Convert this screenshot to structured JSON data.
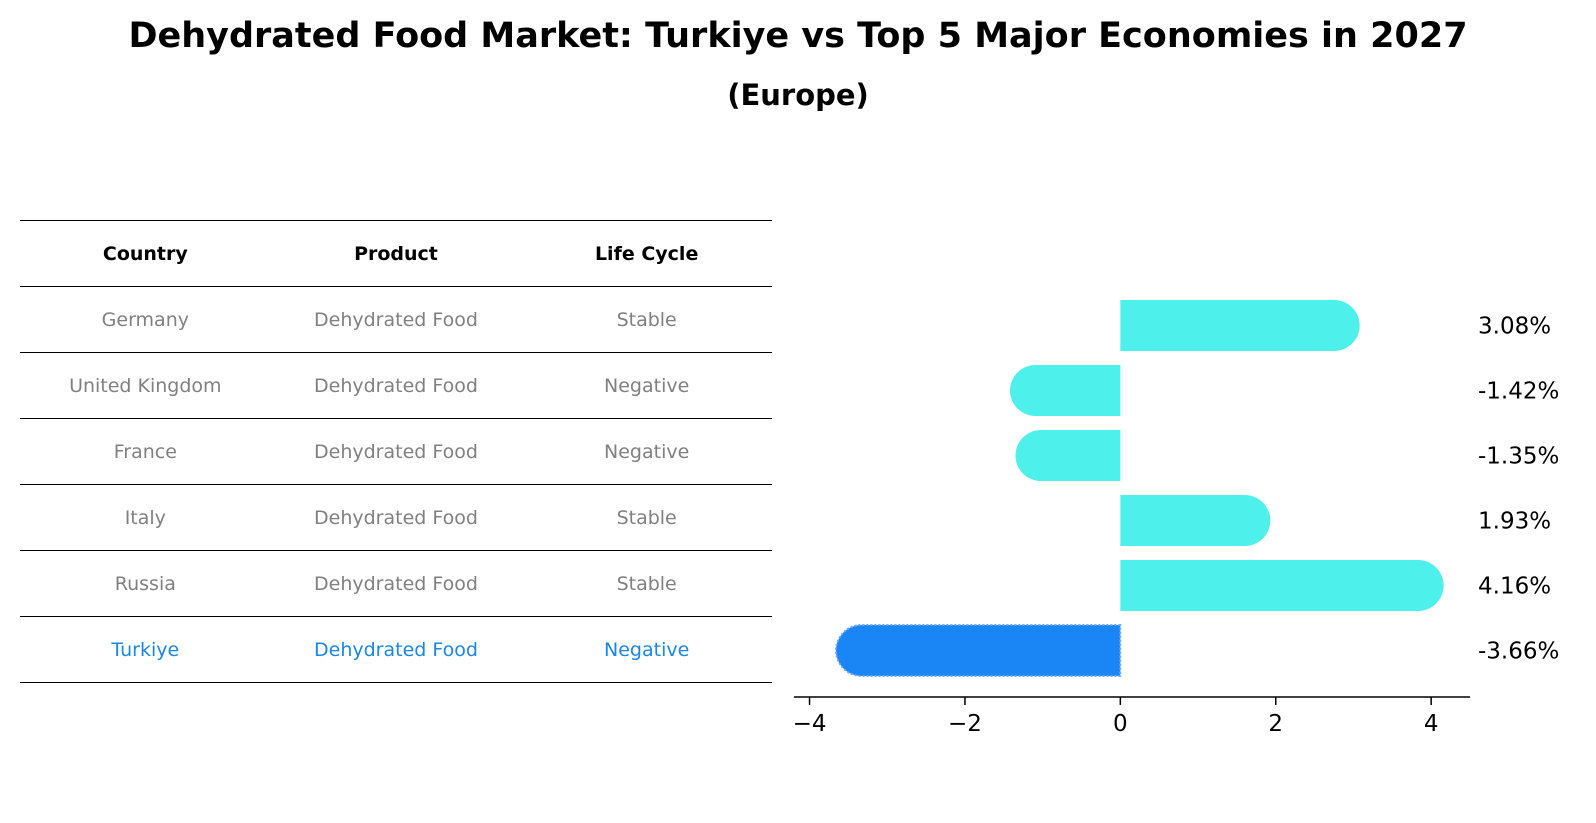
{
  "title": "Dehydrated Food Market: Turkiye vs Top 5 Major Economies in 2027",
  "subtitle": "(Europe)",
  "table": {
    "headers": [
      "Country",
      "Product",
      "Life Cycle"
    ],
    "rows": [
      {
        "country": "Germany",
        "product": "Dehydrated Food",
        "life_cycle": "Stable",
        "highlight": false
      },
      {
        "country": "United Kingdom",
        "product": "Dehydrated Food",
        "life_cycle": "Negative",
        "highlight": false
      },
      {
        "country": "France",
        "product": "Dehydrated Food",
        "life_cycle": "Negative",
        "highlight": false
      },
      {
        "country": "Italy",
        "product": "Dehydrated Food",
        "life_cycle": "Stable",
        "highlight": false
      },
      {
        "country": "Russia",
        "product": "Dehydrated Food",
        "life_cycle": "Stable",
        "highlight": false
      },
      {
        "country": "Turkiye",
        "product": "Dehydrated Food",
        "life_cycle": "Negative",
        "highlight": true
      }
    ]
  },
  "colors": {
    "bar": "#4df0ea",
    "highlight_bar": "#1a86f5",
    "highlight_text": "#1a86e6",
    "row_text": "#808080"
  },
  "chart_data": {
    "type": "bar",
    "orientation": "horizontal",
    "categories": [
      "Germany",
      "United Kingdom",
      "France",
      "Italy",
      "Russia",
      "Turkiye"
    ],
    "values": [
      3.08,
      -1.42,
      -1.35,
      1.93,
      4.16,
      -3.66
    ],
    "value_labels": [
      "3.08%",
      "-1.42%",
      "-1.35%",
      "1.93%",
      "4.16%",
      "-3.66%"
    ],
    "highlight_index": 5,
    "xlim": [
      -4.2,
      4.5
    ],
    "xticks": [
      -4,
      -2,
      0,
      2,
      4
    ],
    "xtick_labels": [
      "−4",
      "−2",
      "0",
      "2",
      "4"
    ],
    "xlabel": "",
    "ylabel": "",
    "grid": false
  }
}
